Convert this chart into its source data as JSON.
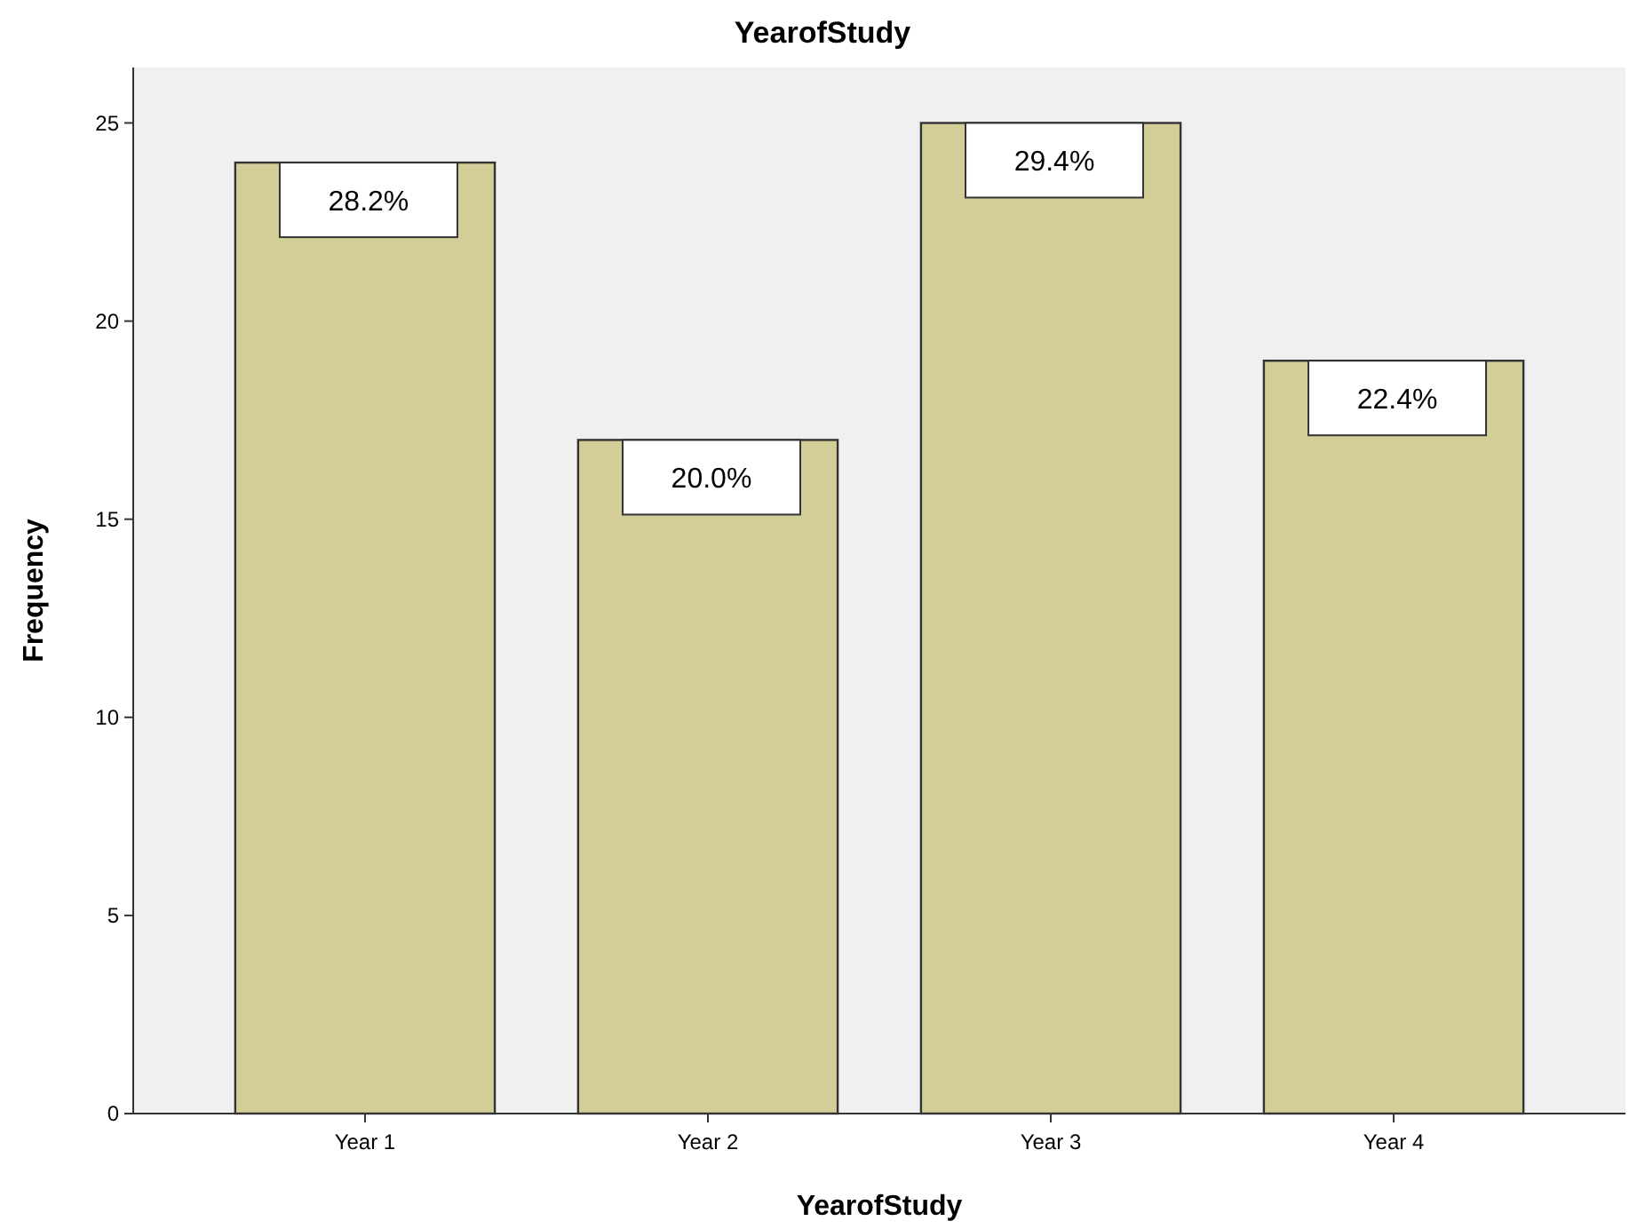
{
  "chart_data": {
    "type": "bar",
    "title": "YearofStudy",
    "xlabel": "YearofStudy",
    "ylabel": "Frequency",
    "categories": [
      "Year 1",
      "Year 2",
      "Year 3",
      "Year 4"
    ],
    "values": [
      24,
      17,
      25,
      19
    ],
    "color": "#d3ce97",
    "annotations": [
      {
        "text": "28.2%",
        "x": "Year 1",
        "y": 24
      },
      {
        "text": "20.0%",
        "x": "Year 2",
        "y": 17
      },
      {
        "text": "29.4%",
        "x": "Year 3",
        "y": 25
      },
      {
        "text": "22.4%",
        "x": "Year 4",
        "y": 19
      }
    ],
    "ylim": [
      0,
      26.4
    ],
    "yticks": [
      0,
      5,
      10,
      15,
      20,
      25
    ],
    "grid": false
  }
}
